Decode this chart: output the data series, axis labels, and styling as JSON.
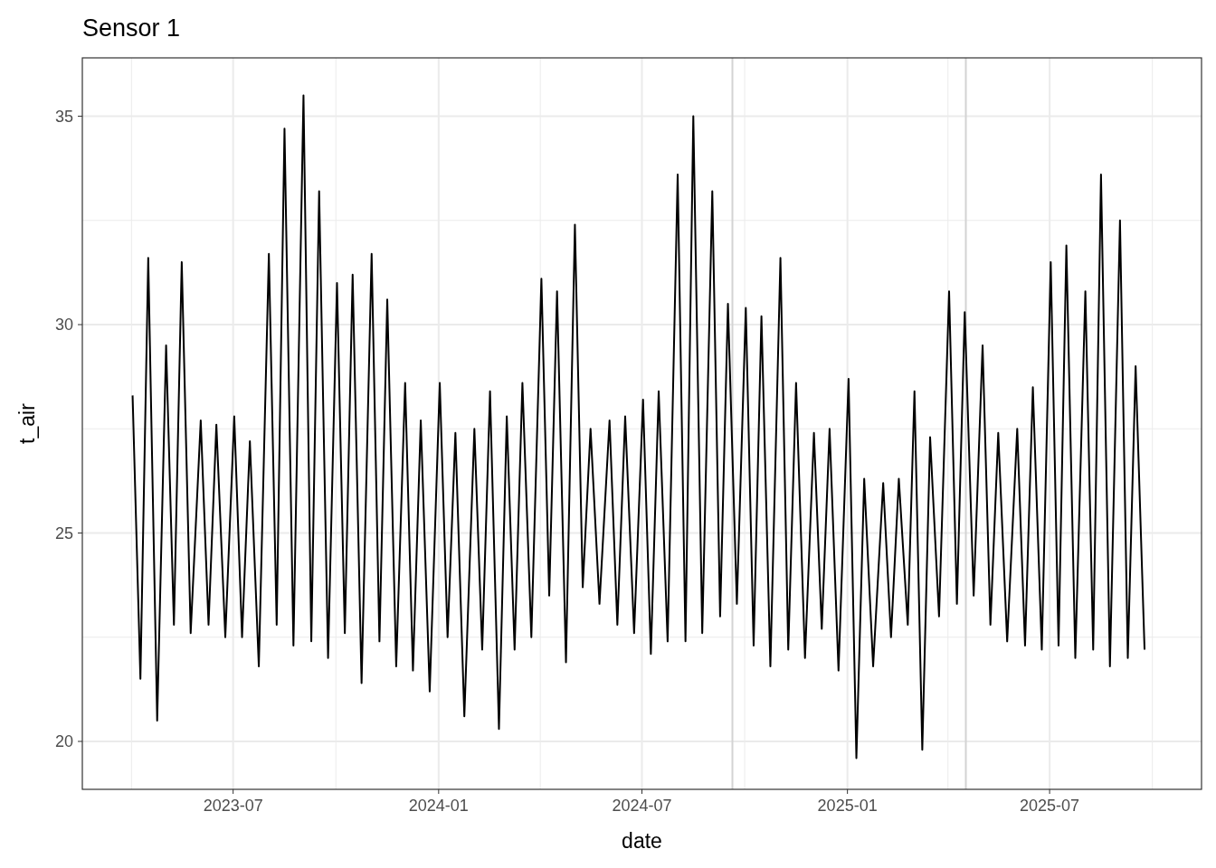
{
  "chart_data": {
    "type": "line",
    "title": "Sensor 1",
    "xlabel": "date",
    "ylabel": "t_air",
    "xlim": [
      "2023-02-16",
      "2025-11-14"
    ],
    "xticks": [
      {
        "value": "2023-04",
        "label": null
      },
      "2023-07",
      {
        "value": "2023-10",
        "label": null
      },
      "2024-01",
      {
        "value": "2024-04",
        "label": null
      },
      "2024-07",
      {
        "value": "2024-10",
        "label": null
      },
      "2025-01",
      {
        "value": "2025-04",
        "label": null
      },
      "2025-07",
      {
        "value": "2025-10",
        "label": null
      }
    ],
    "ylim": [
      18.85,
      36.4
    ],
    "yticks": [
      20,
      {
        "value": 22.5,
        "label": null
      },
      25,
      {
        "value": 27.5,
        "label": null
      },
      30,
      {
        "value": 32.5,
        "label": null
      },
      35
    ],
    "grid": true,
    "ref_lines": [
      {
        "axis": "x",
        "value": "2024-09-20",
        "color": "#d3d3d3"
      },
      {
        "axis": "x",
        "value": "2025-04-17",
        "color": "#d3d3d3"
      }
    ],
    "series": [
      {
        "color": "#000000",
        "x": [
          "2023-04-02",
          "2023-04-09",
          "2023-04-16",
          "2023-04-24",
          "2023-05-02",
          "2023-05-09",
          "2023-05-16",
          "2023-05-24",
          "2023-06-02",
          "2023-06-09",
          "2023-06-16",
          "2023-06-24",
          "2023-07-02",
          "2023-07-09",
          "2023-07-16",
          "2023-07-24",
          "2023-08-02",
          "2023-08-09",
          "2023-08-16",
          "2023-08-24",
          "2023-09-02",
          "2023-09-09",
          "2023-09-16",
          "2023-09-24",
          "2023-10-02",
          "2023-10-09",
          "2023-10-16",
          "2023-10-24",
          "2023-11-02",
          "2023-11-09",
          "2023-11-16",
          "2023-11-24",
          "2023-12-02",
          "2023-12-09",
          "2023-12-16",
          "2023-12-24",
          "2024-01-02",
          "2024-01-09",
          "2024-01-16",
          "2024-01-24",
          "2024-02-02",
          "2024-02-09",
          "2024-02-16",
          "2024-02-24",
          "2024-03-02",
          "2024-03-09",
          "2024-03-16",
          "2024-03-24",
          "2024-04-02",
          "2024-04-09",
          "2024-04-16",
          "2024-04-24",
          "2024-05-02",
          "2024-05-09",
          "2024-05-16",
          "2024-05-24",
          "2024-06-02",
          "2024-06-09",
          "2024-06-16",
          "2024-06-24",
          "2024-07-02",
          "2024-07-09",
          "2024-07-16",
          "2024-07-24",
          "2024-08-02",
          "2024-08-09",
          "2024-08-16",
          "2024-08-24",
          "2024-09-02",
          "2024-09-09",
          "2024-09-16",
          "2024-09-24",
          "2024-10-02",
          "2024-10-09",
          "2024-10-16",
          "2024-10-24",
          "2024-11-02",
          "2024-11-09",
          "2024-11-16",
          "2024-11-24",
          "2024-12-02",
          "2024-12-09",
          "2024-12-16",
          "2024-12-24",
          "2025-01-02",
          "2025-01-09",
          "2025-01-16",
          "2025-01-24",
          "2025-02-02",
          "2025-02-09",
          "2025-02-16",
          "2025-02-24",
          "2025-03-02",
          "2025-03-09",
          "2025-03-16",
          "2025-03-24",
          "2025-04-02",
          "2025-04-09",
          "2025-04-16",
          "2025-04-24",
          "2025-05-02",
          "2025-05-09",
          "2025-05-16",
          "2025-05-24",
          "2025-06-02",
          "2025-06-09",
          "2025-06-16",
          "2025-06-24",
          "2025-07-02",
          "2025-07-09",
          "2025-07-16",
          "2025-07-24",
          "2025-08-02",
          "2025-08-09",
          "2025-08-16",
          "2025-08-24",
          "2025-09-02",
          "2025-09-09",
          "2025-09-16",
          "2025-09-24"
        ],
        "values": [
          28.3,
          21.5,
          31.6,
          20.5,
          29.5,
          22.8,
          31.5,
          22.6,
          27.7,
          22.8,
          27.6,
          22.5,
          27.8,
          22.5,
          27.2,
          21.8,
          31.7,
          22.8,
          34.7,
          22.3,
          35.5,
          22.4,
          33.2,
          22.0,
          31.0,
          22.6,
          31.2,
          21.4,
          31.7,
          22.4,
          30.6,
          21.8,
          28.6,
          21.7,
          27.7,
          21.2,
          28.6,
          22.5,
          27.4,
          20.6,
          27.5,
          22.2,
          28.4,
          20.3,
          27.8,
          22.2,
          28.6,
          22.5,
          31.1,
          23.5,
          30.8,
          21.9,
          32.4,
          23.7,
          27.5,
          23.3,
          27.7,
          22.8,
          27.8,
          22.6,
          28.2,
          22.1,
          28.4,
          22.4,
          33.6,
          22.4,
          35.0,
          22.6,
          33.2,
          23.0,
          30.5,
          23.3,
          30.4,
          22.3,
          30.2,
          21.8,
          31.6,
          22.2,
          28.6,
          22.0,
          27.4,
          22.7,
          27.5,
          21.7,
          28.7,
          19.6,
          26.3,
          21.8,
          26.2,
          22.5,
          26.3,
          22.8,
          28.4,
          19.8,
          27.3,
          23.0,
          30.8,
          23.3,
          30.3,
          23.5,
          29.5,
          22.8,
          27.4,
          22.4,
          27.5,
          22.3,
          28.5,
          22.2,
          31.5,
          22.3,
          31.9,
          22.0,
          30.8,
          22.2,
          33.6,
          21.8,
          32.5,
          22.0,
          29.0,
          22.2
        ]
      }
    ]
  }
}
